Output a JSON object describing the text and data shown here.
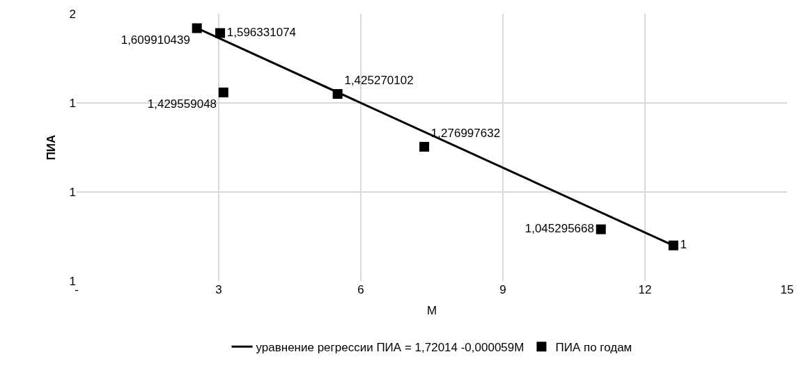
{
  "chart_data": {
    "type": "scatter",
    "xlabel": "М",
    "ylabel": "ПИА",
    "xlim": [
      0,
      15
    ],
    "xticks": [
      {
        "value": 0,
        "label": "-"
      },
      3,
      6,
      9,
      12,
      15
    ],
    "ylim": [
      0.9,
      1.65
    ],
    "yticks": [
      {
        "value": 0.9,
        "label": "1"
      },
      {
        "value": 1.15,
        "label": "1"
      },
      {
        "value": 1.4,
        "label": "1"
      },
      {
        "value": 1.65,
        "label": "2"
      }
    ],
    "grid": true,
    "legend": "bottom",
    "series": [
      {
        "name": "уравнение регрессии ПИА = 1,72014 -0,000059М",
        "type": "line",
        "color": "#000000",
        "x": [
          2.54,
          12.6
        ],
        "values": [
          1.61,
          1.0
        ],
        "marker": "none",
        "line_style": "solid"
      },
      {
        "name": "ПИА по годам",
        "color": "#000000",
        "marker": "square",
        "x": [
          2.54,
          3.03,
          3.1,
          5.51,
          7.34,
          11.07,
          12.6
        ],
        "values": [
          1.609910439,
          1.596331074,
          1.429559048,
          1.425270102,
          1.276997632,
          1.045295668,
          1
        ],
        "value_labels": [
          "1,609910439",
          "1,596331074",
          "1,429559048",
          "1,425270102",
          "1,276997632",
          "1,045295668",
          "1"
        ]
      }
    ]
  }
}
